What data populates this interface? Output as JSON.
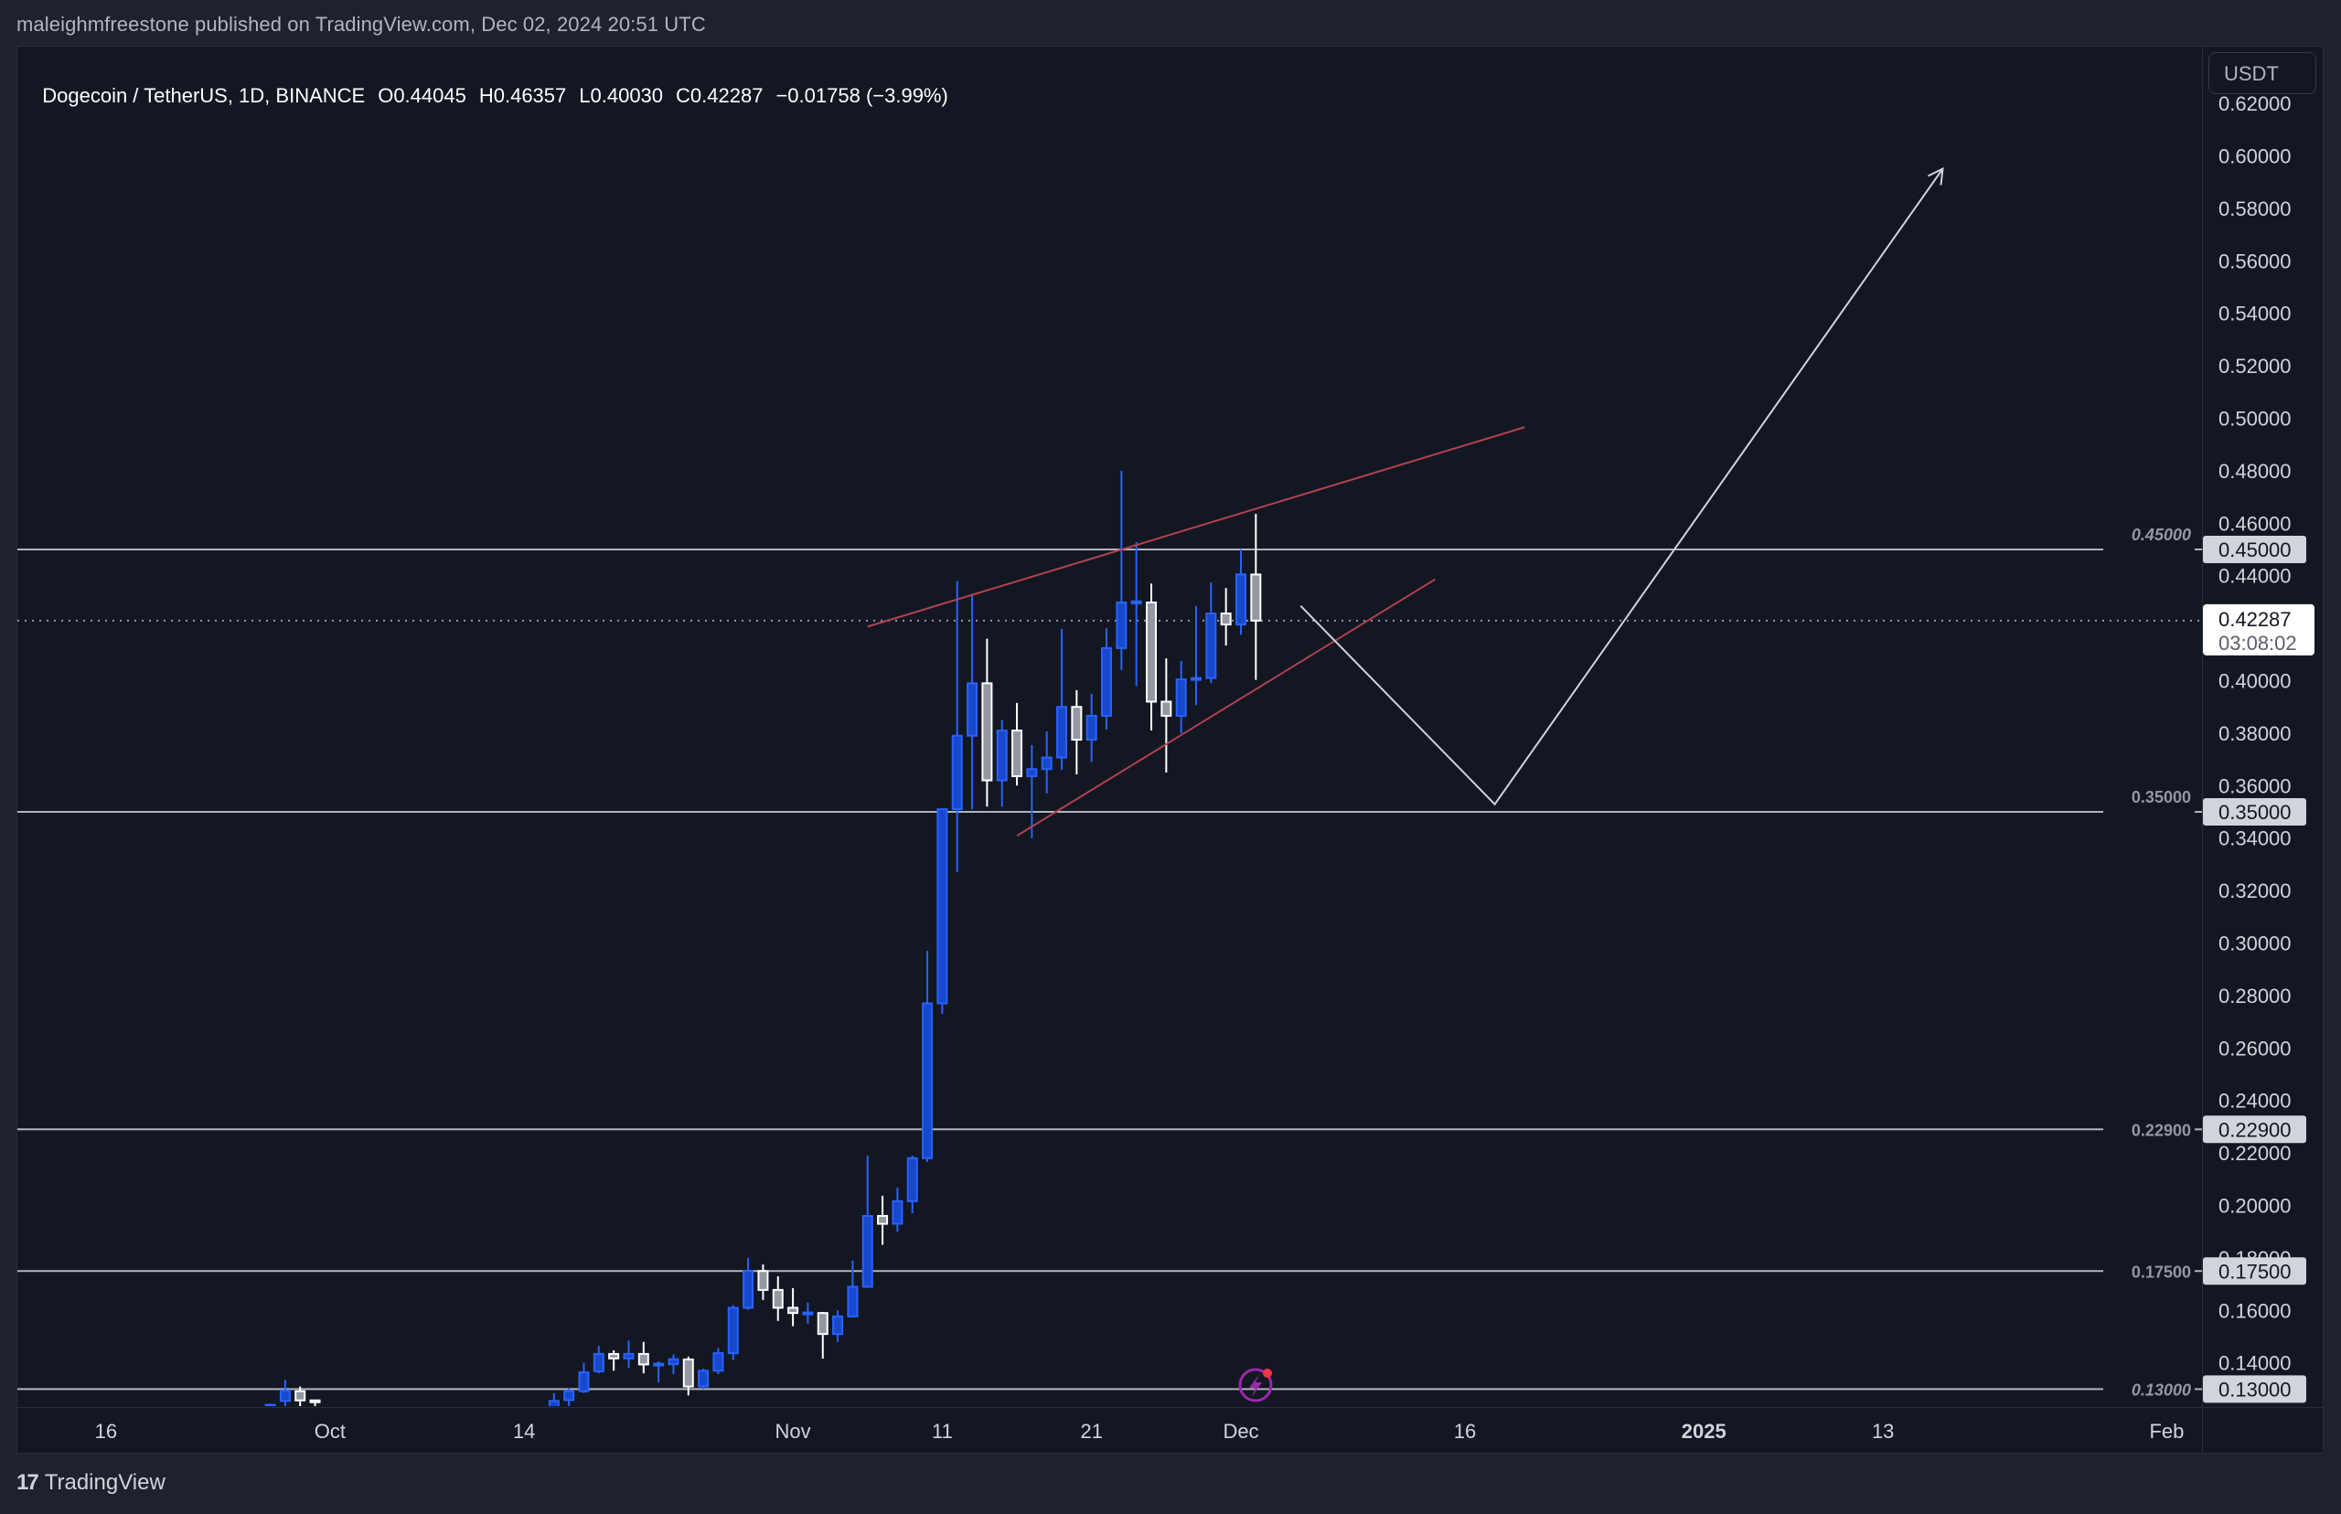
{
  "publisher": "maleighmfreestone published on TradingView.com, Dec 02, 2024 20:51 UTC",
  "legend": {
    "symbol": "Dogecoin / TetherUS, 1D, BINANCE",
    "open": "O0.44045",
    "high": "H0.46357",
    "low": "L0.40030",
    "close": "C0.42287",
    "change": "−0.01758 (−3.99%)"
  },
  "price_axis": {
    "currency": "USDT",
    "current_price": "0.42287",
    "countdown": "03:08:02"
  },
  "footer": {
    "logo_mark": "17",
    "logo_text": "TradingView"
  },
  "colors": {
    "background": "#1e222d",
    "chart_bg": "#131722",
    "bull": "#1848cc",
    "bull_border": "#2962ff",
    "bear_fill": "#9598a1",
    "bear_border": "#ffffff",
    "level_line": "#b2b5be",
    "trendline": "#b2424f",
    "projection": "#d1d4dc",
    "alert_icon": "#9c27b0",
    "alert_dot": "#f23645"
  },
  "chart_data": {
    "type": "candlestick",
    "title": "Dogecoin / TetherUS, 1D, BINANCE",
    "xlabel": "",
    "ylabel": "USDT",
    "ylim": [
      0.125,
      0.625
    ],
    "grid": false,
    "y_ticks": [
      "0.62000",
      "0.60000",
      "0.58000",
      "0.56000",
      "0.54000",
      "0.52000",
      "0.50000",
      "0.48000",
      "0.46000",
      "0.44000",
      "0.40000",
      "0.38000",
      "0.36000",
      "0.34000",
      "0.32000",
      "0.30000",
      "0.28000",
      "0.26000",
      "0.24000",
      "0.22000",
      "0.20000",
      "0.18000",
      "0.16000",
      "0.14000"
    ],
    "x_ticks": [
      {
        "label": "16",
        "day": -76,
        "bold": false
      },
      {
        "label": "Oct",
        "day": -61,
        "bold": false
      },
      {
        "label": "14",
        "day": -48,
        "bold": false
      },
      {
        "label": "Nov",
        "day": -30,
        "bold": false
      },
      {
        "label": "11",
        "day": -20,
        "bold": false
      },
      {
        "label": "21",
        "day": -10,
        "bold": false
      },
      {
        "label": "Dec",
        "day": 0,
        "bold": false
      },
      {
        "label": "16",
        "day": 15,
        "bold": false
      },
      {
        "label": "2025",
        "day": 31,
        "bold": true
      },
      {
        "label": "13",
        "day": 43,
        "bold": false
      },
      {
        "label": "Feb",
        "day": 62,
        "bold": false
      }
    ],
    "horizontal_levels": [
      {
        "price": 0.45,
        "label": "0.45000",
        "italic": true
      },
      {
        "price": 0.35,
        "label": "0.35000",
        "italic": false
      },
      {
        "price": 0.229,
        "label": "0.22900",
        "italic": false
      },
      {
        "price": 0.175,
        "label": "0.17500",
        "italic": false
      },
      {
        "price": 0.13,
        "label": "0.13000",
        "italic": true
      }
    ],
    "candles": [
      {
        "date": "2024-09-27",
        "o": 0.124,
        "h": 0.1245,
        "l": 0.12,
        "c": 0.124
      },
      {
        "date": "2024-09-28",
        "o": 0.1255,
        "h": 0.1335,
        "l": 0.12,
        "c": 0.1295
      },
      {
        "date": "2024-09-29",
        "o": 0.1292,
        "h": 0.131,
        "l": 0.12,
        "c": 0.1257
      },
      {
        "date": "2024-09-30",
        "o": 0.1257,
        "h": 0.126,
        "l": 0.12,
        "c": 0.1255
      },
      {
        "date": "2024-10-16",
        "o": 0.12,
        "h": 0.1285,
        "l": 0.12,
        "c": 0.1255
      },
      {
        "date": "2024-10-17",
        "o": 0.1258,
        "h": 0.1305,
        "l": 0.12,
        "c": 0.1292
      },
      {
        "date": "2024-10-18",
        "o": 0.1292,
        "h": 0.14,
        "l": 0.1285,
        "c": 0.1364
      },
      {
        "date": "2024-10-19",
        "o": 0.1368,
        "h": 0.1465,
        "l": 0.136,
        "c": 0.1434
      },
      {
        "date": "2024-10-20",
        "o": 0.1434,
        "h": 0.1448,
        "l": 0.137,
        "c": 0.1417
      },
      {
        "date": "2024-10-21",
        "o": 0.1417,
        "h": 0.1485,
        "l": 0.138,
        "c": 0.1434
      },
      {
        "date": "2024-10-22",
        "o": 0.1434,
        "h": 0.148,
        "l": 0.136,
        "c": 0.1394
      },
      {
        "date": "2024-10-23",
        "o": 0.1394,
        "h": 0.1406,
        "l": 0.1325,
        "c": 0.1397
      },
      {
        "date": "2024-10-24",
        "o": 0.1395,
        "h": 0.1432,
        "l": 0.1357,
        "c": 0.1414
      },
      {
        "date": "2024-10-25",
        "o": 0.1413,
        "h": 0.1424,
        "l": 0.1276,
        "c": 0.131
      },
      {
        "date": "2024-10-26",
        "o": 0.131,
        "h": 0.1378,
        "l": 0.13,
        "c": 0.137
      },
      {
        "date": "2024-10-27",
        "o": 0.137,
        "h": 0.1457,
        "l": 0.1357,
        "c": 0.1437
      },
      {
        "date": "2024-10-28",
        "o": 0.1437,
        "h": 0.162,
        "l": 0.141,
        "c": 0.161
      },
      {
        "date": "2024-10-29",
        "o": 0.161,
        "h": 0.18,
        "l": 0.1602,
        "c": 0.175
      },
      {
        "date": "2024-10-30",
        "o": 0.175,
        "h": 0.1775,
        "l": 0.164,
        "c": 0.1678
      },
      {
        "date": "2024-10-31",
        "o": 0.1678,
        "h": 0.173,
        "l": 0.156,
        "c": 0.161
      },
      {
        "date": "2024-11-01",
        "o": 0.161,
        "h": 0.1685,
        "l": 0.154,
        "c": 0.159
      },
      {
        "date": "2024-11-02",
        "o": 0.159,
        "h": 0.163,
        "l": 0.155,
        "c": 0.1592
      },
      {
        "date": "2024-11-03",
        "o": 0.159,
        "h": 0.1594,
        "l": 0.1416,
        "c": 0.151
      },
      {
        "date": "2024-11-04",
        "o": 0.151,
        "h": 0.16,
        "l": 0.148,
        "c": 0.1577
      },
      {
        "date": "2024-11-05",
        "o": 0.1577,
        "h": 0.179,
        "l": 0.1577,
        "c": 0.169
      },
      {
        "date": "2024-11-06",
        "o": 0.169,
        "h": 0.219,
        "l": 0.169,
        "c": 0.196
      },
      {
        "date": "2024-11-07",
        "o": 0.196,
        "h": 0.2037,
        "l": 0.185,
        "c": 0.193
      },
      {
        "date": "2024-11-08",
        "o": 0.193,
        "h": 0.2068,
        "l": 0.19,
        "c": 0.2016
      },
      {
        "date": "2024-11-09",
        "o": 0.2016,
        "h": 0.219,
        "l": 0.197,
        "c": 0.218
      },
      {
        "date": "2024-11-10",
        "o": 0.218,
        "h": 0.297,
        "l": 0.2165,
        "c": 0.277
      },
      {
        "date": "2024-11-11",
        "o": 0.277,
        "h": 0.351,
        "l": 0.273,
        "c": 0.351
      },
      {
        "date": "2024-11-12",
        "o": 0.351,
        "h": 0.438,
        "l": 0.327,
        "c": 0.379
      },
      {
        "date": "2024-11-13",
        "o": 0.379,
        "h": 0.433,
        "l": 0.351,
        "c": 0.399
      },
      {
        "date": "2024-11-14",
        "o": 0.399,
        "h": 0.416,
        "l": 0.352,
        "c": 0.362
      },
      {
        "date": "2024-11-15",
        "o": 0.362,
        "h": 0.385,
        "l": 0.352,
        "c": 0.381
      },
      {
        "date": "2024-11-16",
        "o": 0.381,
        "h": 0.3915,
        "l": 0.36,
        "c": 0.3636
      },
      {
        "date": "2024-11-17",
        "o": 0.3636,
        "h": 0.3755,
        "l": 0.34,
        "c": 0.3663
      },
      {
        "date": "2024-11-18",
        "o": 0.3663,
        "h": 0.3807,
        "l": 0.357,
        "c": 0.3707
      },
      {
        "date": "2024-11-19",
        "o": 0.3707,
        "h": 0.4197,
        "l": 0.366,
        "c": 0.39
      },
      {
        "date": "2024-11-20",
        "o": 0.39,
        "h": 0.3964,
        "l": 0.3643,
        "c": 0.3775
      },
      {
        "date": "2024-11-21",
        "o": 0.3775,
        "h": 0.395,
        "l": 0.369,
        "c": 0.3866
      },
      {
        "date": "2024-11-22",
        "o": 0.3866,
        "h": 0.42,
        "l": 0.3814,
        "c": 0.4124
      },
      {
        "date": "2024-11-23",
        "o": 0.4124,
        "h": 0.48,
        "l": 0.404,
        "c": 0.4298
      },
      {
        "date": "2024-11-24",
        "o": 0.4298,
        "h": 0.4528,
        "l": 0.398,
        "c": 0.4302
      },
      {
        "date": "2024-11-25",
        "o": 0.4298,
        "h": 0.437,
        "l": 0.381,
        "c": 0.392
      },
      {
        "date": "2024-11-26",
        "o": 0.392,
        "h": 0.4085,
        "l": 0.365,
        "c": 0.3866
      },
      {
        "date": "2024-11-27",
        "o": 0.3866,
        "h": 0.4075,
        "l": 0.38,
        "c": 0.4005
      },
      {
        "date": "2024-11-28",
        "o": 0.4005,
        "h": 0.4284,
        "l": 0.3907,
        "c": 0.401
      },
      {
        "date": "2024-11-29",
        "o": 0.401,
        "h": 0.4375,
        "l": 0.399,
        "c": 0.4256
      },
      {
        "date": "2024-11-30",
        "o": 0.4256,
        "h": 0.4353,
        "l": 0.4134,
        "c": 0.4214
      },
      {
        "date": "2024-12-01",
        "o": 0.4214,
        "h": 0.45,
        "l": 0.4175,
        "c": 0.4405
      },
      {
        "date": "2024-12-02",
        "o": 0.44045,
        "h": 0.46357,
        "l": 0.4003,
        "c": 0.42287
      }
    ],
    "drawings": {
      "trendlines": [
        {
          "name": "upper-wedge-line",
          "from": {
            "day": -25,
            "price": 0.4206
          },
          "to": {
            "day": 19,
            "price": 0.4966
          }
        },
        {
          "name": "lower-wedge-line",
          "from": {
            "day": -15,
            "price": 0.3409
          },
          "to": {
            "day": 13,
            "price": 0.4386
          }
        }
      ],
      "projection_path": [
        {
          "day": 4,
          "price": 0.4285
        },
        {
          "day": 17,
          "price": 0.3529
        },
        {
          "day": 47,
          "price": 0.5951
        }
      ]
    }
  }
}
